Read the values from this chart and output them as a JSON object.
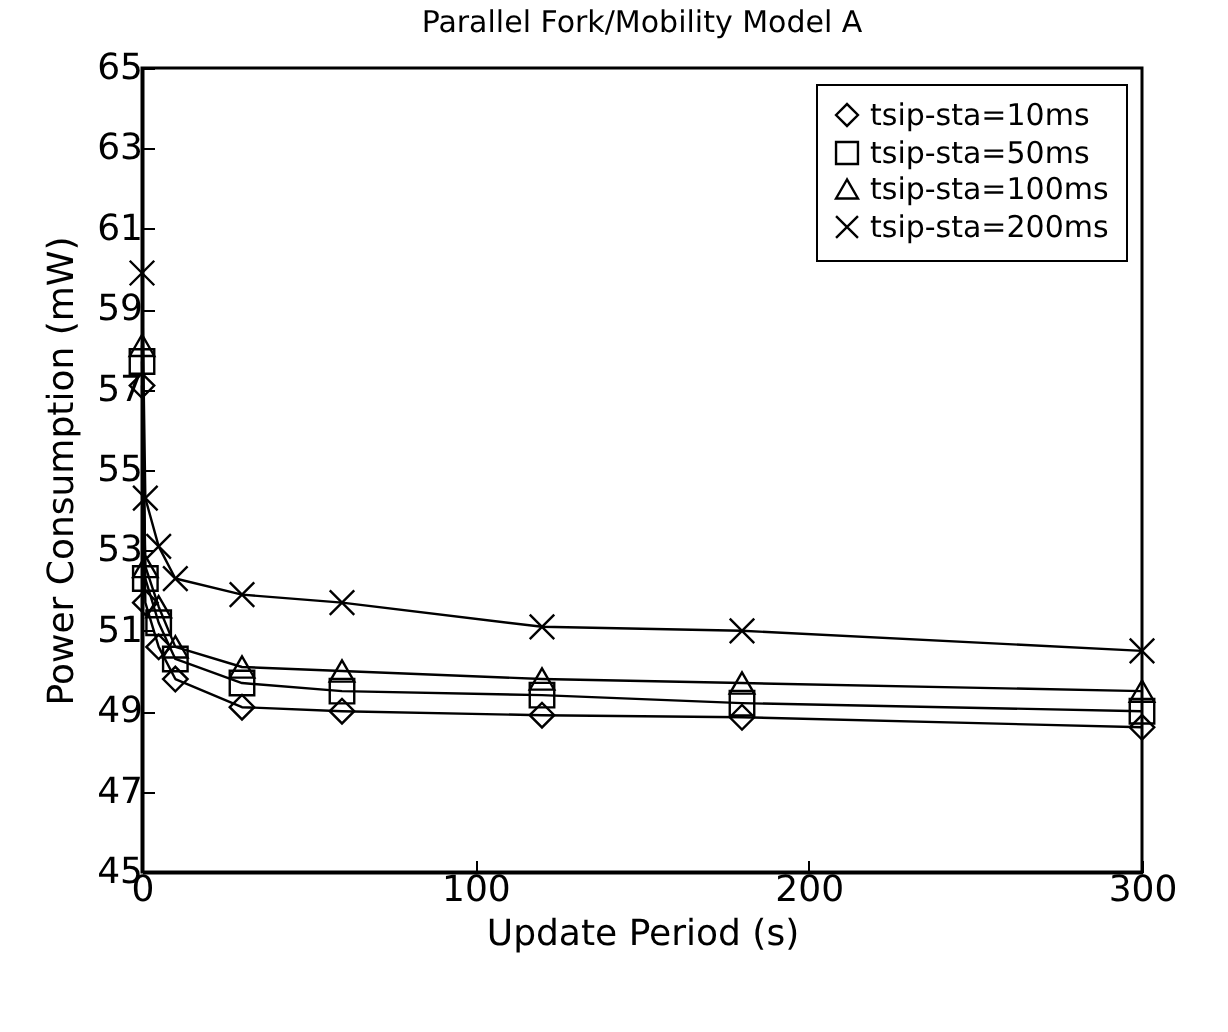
{
  "chart_data": {
    "type": "line",
    "title": "Parallel Fork/Mobility Model A",
    "xlabel": "Update Period (s)",
    "ylabel": "Power Consumption (mW)",
    "x": [
      0,
      1,
      5,
      10,
      30,
      60,
      120,
      180,
      300
    ],
    "series": [
      {
        "name": "tsip-sta=10ms",
        "color": "#000000",
        "marker": "diamond",
        "values": [
          57.1,
          51.7,
          50.6,
          49.8,
          49.1,
          49.0,
          48.9,
          48.85,
          48.6
        ]
      },
      {
        "name": "tsip-sta=50ms",
        "color": "#000000",
        "marker": "square",
        "values": [
          57.7,
          52.3,
          51.2,
          50.3,
          49.7,
          49.5,
          49.4,
          49.2,
          49.0
        ]
      },
      {
        "name": "tsip-sta=100ms",
        "color": "#000000",
        "marker": "triangle",
        "values": [
          58.1,
          52.6,
          51.6,
          50.6,
          50.1,
          50.0,
          49.8,
          49.7,
          49.5
        ]
      },
      {
        "name": "tsip-sta=200ms",
        "color": "#000000",
        "marker": "cross",
        "values": [
          59.9,
          54.3,
          53.1,
          52.3,
          51.9,
          51.7,
          51.1,
          51.0,
          50.5
        ]
      }
    ],
    "xlim": [
      0,
      300
    ],
    "xticks": [
      0,
      100,
      200,
      300
    ],
    "ylim": [
      45,
      65
    ],
    "yticks": [
      45,
      47,
      49,
      51,
      53,
      55,
      57,
      59,
      61,
      63,
      65
    ],
    "grid": false,
    "legend": "top right",
    "line_style": "solid"
  }
}
